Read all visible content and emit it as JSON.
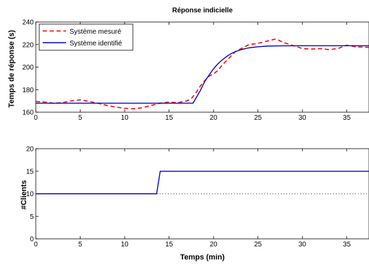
{
  "chart_data": [
    {
      "type": "line",
      "title": "Réponse indicielle",
      "xlabel": "",
      "ylabel": "Temps de réponse (s)",
      "xlim": [
        0,
        37.5
      ],
      "ylim": [
        160,
        240
      ],
      "xticks": [
        0,
        5,
        10,
        15,
        20,
        25,
        30,
        35
      ],
      "yticks": [
        160,
        180,
        200,
        220,
        240
      ],
      "xtick_labels": [
        "0",
        "5",
        "10",
        "15",
        "20",
        "25",
        "30",
        "35"
      ],
      "ytick_labels": [
        "160",
        "180",
        "200",
        "220",
        "240"
      ],
      "grid": false,
      "legend_position": "top-left",
      "series": [
        {
          "name": "Système mesuré",
          "color": "#ff0000",
          "style": "dashed",
          "x": [
            0,
            1,
            2,
            3,
            4,
            5,
            6,
            7,
            8,
            9,
            10,
            11,
            12,
            13,
            14,
            15,
            16,
            17,
            17.5,
            18,
            18.5,
            19,
            19.5,
            20,
            20.5,
            21,
            21.5,
            22,
            22.5,
            23,
            23.5,
            24,
            25,
            26,
            27,
            28,
            29,
            30,
            31,
            32,
            33,
            34,
            35,
            36,
            37.5
          ],
          "y": [
            169.5,
            169,
            168,
            168.5,
            170,
            171,
            169.5,
            168,
            166,
            164.5,
            163.5,
            163,
            164,
            166,
            168,
            169,
            168.5,
            170,
            172,
            177,
            183,
            188,
            192,
            194,
            197,
            202,
            206,
            210,
            214,
            216,
            218,
            220,
            221,
            223,
            225,
            221.5,
            219,
            216.5,
            216,
            216.5,
            215.5,
            216.5,
            219.5,
            218,
            217.5
          ]
        },
        {
          "name": "Système identifié",
          "color": "#0000cc",
          "style": "solid",
          "x": [
            0,
            17.7,
            18.5,
            19,
            19.5,
            20,
            20.5,
            21,
            21.5,
            22,
            22.5,
            23,
            23.5,
            24,
            25,
            26,
            27,
            28,
            30,
            32,
            37.5
          ],
          "y": [
            168,
            168,
            179,
            187,
            193,
            198.5,
            203,
            206.5,
            209.5,
            212,
            213.8,
            215.2,
            216.3,
            217.1,
            218.1,
            218.6,
            218.8,
            218.9,
            219,
            219,
            219
          ]
        }
      ]
    },
    {
      "type": "line",
      "title": "",
      "xlabel": "Temps (min)",
      "ylabel": "#Clients",
      "xlim": [
        0,
        37.5
      ],
      "ylim": [
        0,
        20
      ],
      "xticks": [
        0,
        5,
        10,
        15,
        20,
        25,
        30,
        35
      ],
      "yticks": [
        0,
        5,
        10,
        15,
        20
      ],
      "xtick_labels": [
        "0",
        "5",
        "10",
        "15",
        "20",
        "25",
        "30",
        "35"
      ],
      "ytick_labels": [
        "0",
        "5",
        "10",
        "15",
        "20"
      ],
      "grid": false,
      "reference_line": {
        "y": 10,
        "color": "#000000",
        "style": "dotted"
      },
      "series": [
        {
          "name": "",
          "color": "#0000cc",
          "style": "solid",
          "x": [
            0,
            13.6,
            14.0,
            37.5
          ],
          "y": [
            10,
            10,
            15,
            15
          ]
        }
      ]
    }
  ]
}
